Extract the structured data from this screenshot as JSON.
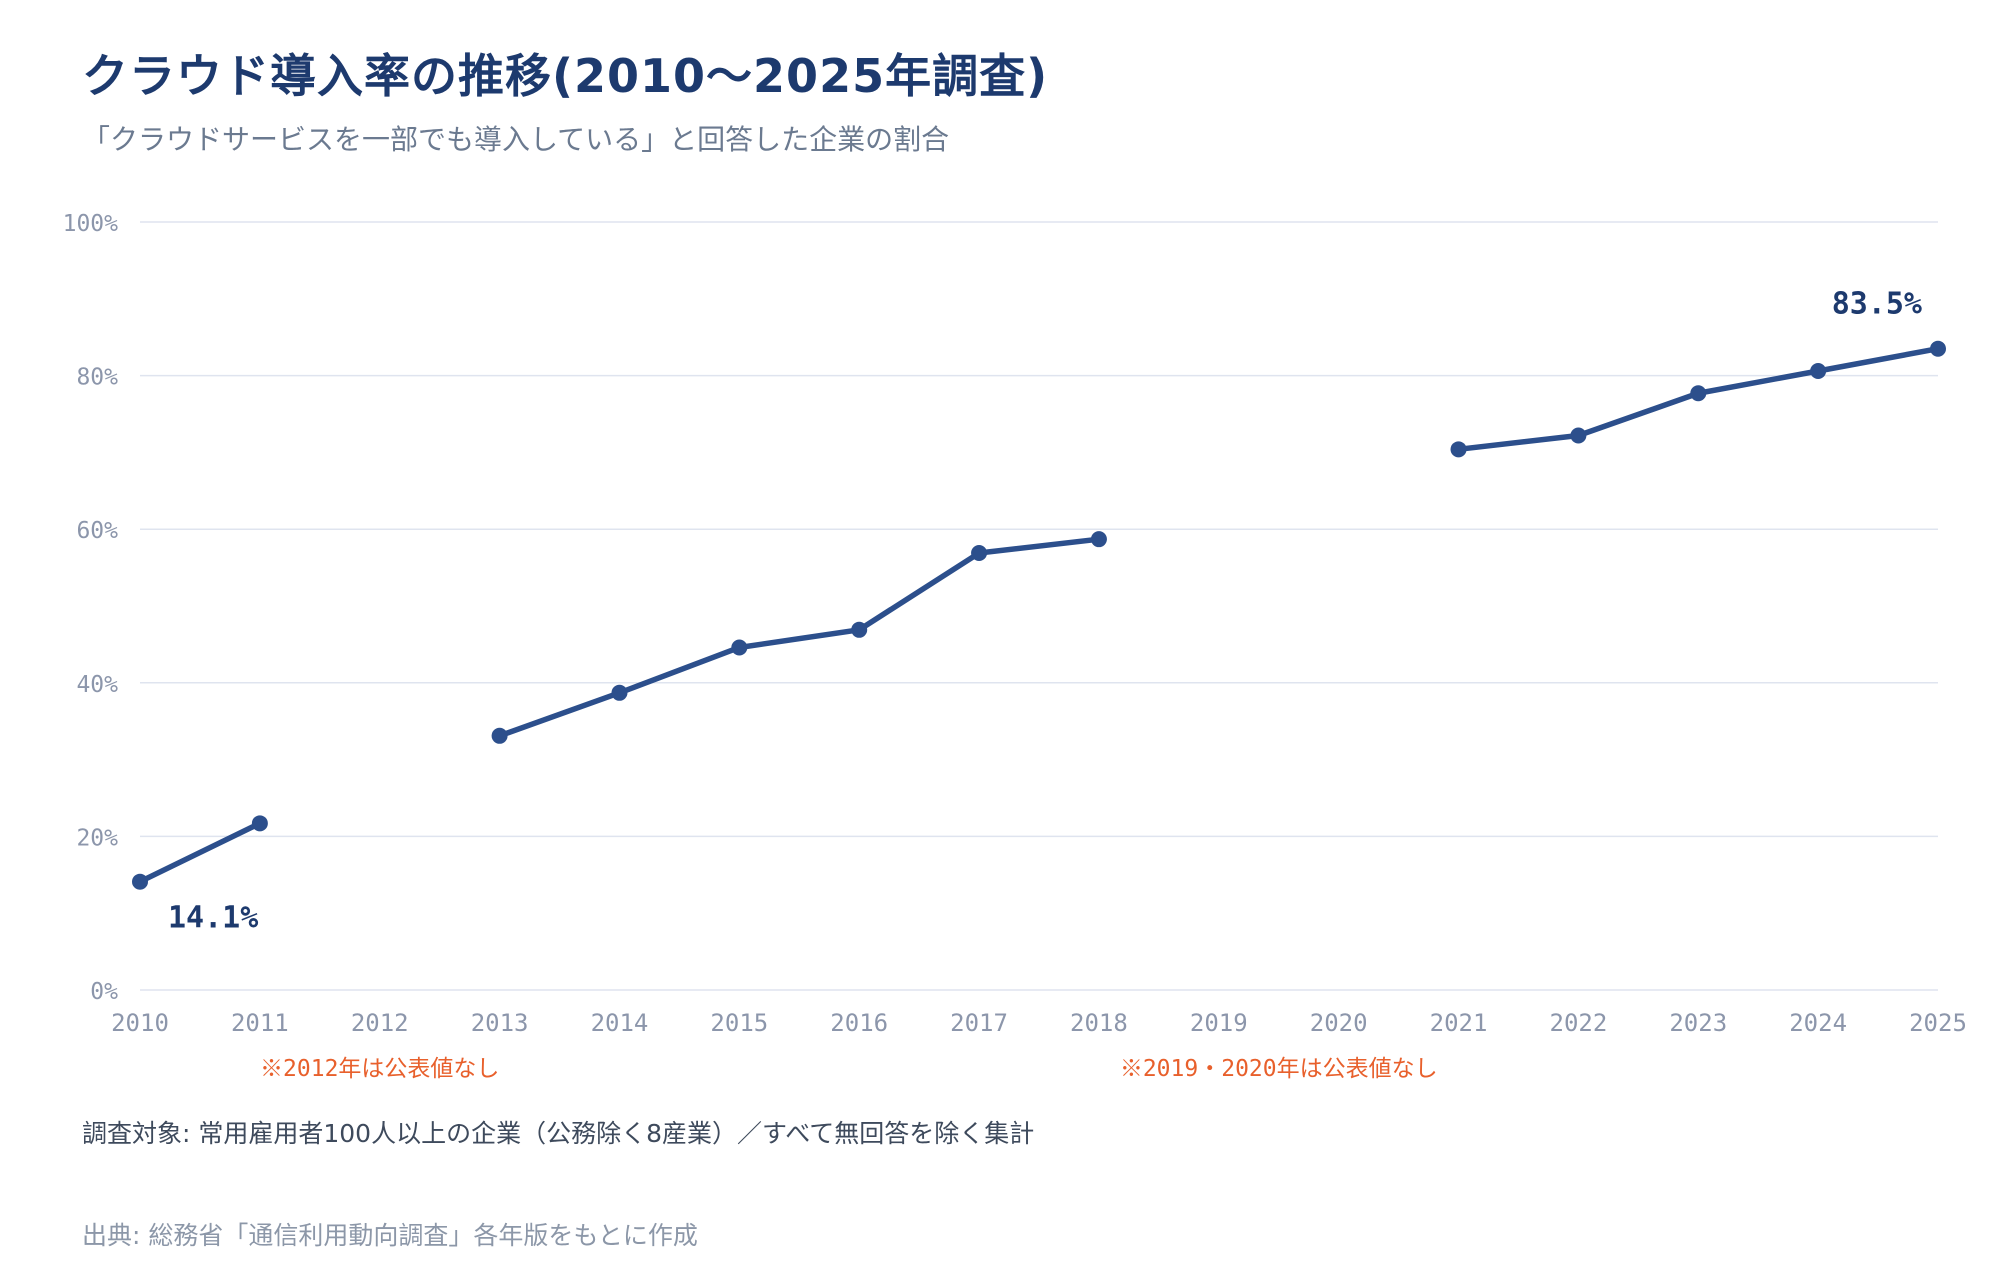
{
  "header": {
    "title": "クラウド導入率の推移(2010〜2025年調査)",
    "subtitle": "「クラウドサービスを一部でも導入している」と回答した企業の割合"
  },
  "footer": {
    "target": "調査対象: 常用雇用者100人以上の企業（公務除く8産業）／すべて無回答を除く集計",
    "source": "出典: 総務省「通信利用動向調査」各年版をもとに作成"
  },
  "colors": {
    "line": "#2c4f8c",
    "grid": "#dfe4ef",
    "tick": "#8c96ab",
    "note": "#e8602c",
    "label": "#1d3a6e"
  },
  "chart_data": {
    "type": "line",
    "x": [
      "2010",
      "2011",
      "2012",
      "2013",
      "2014",
      "2015",
      "2016",
      "2017",
      "2018",
      "2019",
      "2020",
      "2021",
      "2022",
      "2023",
      "2024",
      "2025"
    ],
    "series": [
      {
        "values": [
          14.1,
          21.7,
          null,
          33.1,
          38.7,
          44.6,
          46.9,
          56.9,
          58.7,
          null,
          null,
          70.4,
          72.2,
          77.7,
          80.6,
          83.5
        ]
      }
    ],
    "ylim": [
      0,
      100
    ],
    "yticks": [
      0,
      20,
      40,
      60,
      80,
      100
    ],
    "ytick_labels": [
      "0%",
      "20%",
      "40%",
      "60%",
      "80%",
      "100%"
    ],
    "grid": true,
    "data_labels": [
      {
        "x": "2010",
        "text": "14.1%"
      },
      {
        "x": "2025",
        "text": "83.5%"
      }
    ],
    "annotations": [
      {
        "x": "2012",
        "text": "※2012年は公表値なし"
      },
      {
        "x": "2019–2020",
        "text": "※2019・2020年は公表値なし"
      }
    ]
  }
}
